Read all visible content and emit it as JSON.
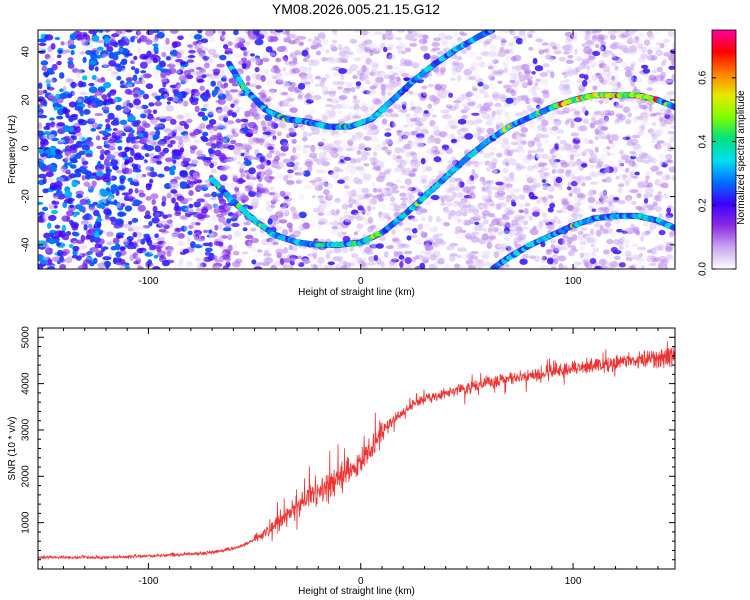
{
  "title": "YM08.2026.005.21.15.G12",
  "chart_data": [
    {
      "type": "heatmap",
      "xlabel": "Height of straight line (km)",
      "ylabel": "Frequency (Hz)",
      "xlim": [
        -152,
        148
      ],
      "ylim": [
        -50,
        49
      ],
      "xticks": [
        -100,
        0,
        100
      ],
      "xtick_labels": [
        "-100",
        "0",
        "100"
      ],
      "yticks": [
        -40,
        -20,
        0,
        20,
        40
      ],
      "ytick_labels": [
        "-40",
        "-20",
        "0",
        "20",
        "40"
      ],
      "grid": false,
      "colorbar": {
        "label": "Normalized spectral amplitude",
        "range": [
          0,
          0.75
        ],
        "ticks": [
          0,
          0.2,
          0.4,
          0.6
        ],
        "tick_labels": [
          "0.0",
          "0.2",
          "0.4",
          "0.6"
        ],
        "colors": [
          "#ffffff",
          "#c8a6f0",
          "#8a2be2",
          "#3c00ff",
          "#0070ff",
          "#00e0f0",
          "#00e080",
          "#80ff00",
          "#e8e800",
          "#ff8000",
          "#ff0000",
          "#ff00a0"
        ]
      },
      "series": [
        {
          "x": [
            -62,
            -55,
            -45,
            -35,
            -25,
            -15,
            -5,
            5,
            15,
            25,
            35,
            45,
            55,
            62
          ],
          "y": [
            35,
            25,
            16,
            12,
            11,
            9,
            9,
            12,
            20,
            28,
            35,
            41,
            46,
            49
          ]
        },
        {
          "x": [
            -70,
            -60,
            -50,
            -40,
            -30,
            -20,
            -10,
            0,
            10,
            20,
            30,
            40,
            50,
            60,
            70,
            80,
            90,
            100,
            110,
            120,
            130,
            140,
            148
          ],
          "y": [
            -13,
            -22,
            -30,
            -36,
            -39,
            -40,
            -40,
            -39,
            -35,
            -28,
            -20,
            -12,
            -4,
            3,
            9,
            13,
            17,
            20,
            22,
            22,
            22,
            20,
            17
          ]
        },
        {
          "x": [
            62,
            70,
            80,
            90,
            100,
            110,
            120,
            130,
            140,
            148
          ],
          "y": [
            -50,
            -45,
            -40,
            -36,
            -32,
            -29,
            -28,
            -28,
            -30,
            -33
          ]
        }
      ]
    },
    {
      "type": "line",
      "xlabel": "Height of straight line (km)",
      "ylabel": "SNR (10 * v/v)",
      "xlim": [
        -152,
        148
      ],
      "ylim": [
        0,
        5200
      ],
      "xticks": [
        -100,
        0,
        100
      ],
      "xtick_labels": [
        "-100",
        "0",
        "100"
      ],
      "yticks": [
        1000,
        2000,
        3000,
        4000,
        5000
      ],
      "ytick_labels": [
        "1000",
        "2000",
        "3000",
        "4000",
        "5000"
      ],
      "grid": false,
      "color": "#ee3333",
      "series": [
        {
          "x": [
            -152,
            -140,
            -120,
            -100,
            -80,
            -70,
            -60,
            -55,
            -50,
            -45,
            -40,
            -35,
            -30,
            -25,
            -20,
            -15,
            -10,
            -5,
            0,
            5,
            10,
            15,
            20,
            25,
            30,
            40,
            50,
            60,
            70,
            80,
            90,
            100,
            110,
            120,
            130,
            140,
            148
          ],
          "y": [
            250,
            250,
            250,
            280,
            320,
            360,
            440,
            520,
            640,
            800,
            950,
            1150,
            1350,
            1550,
            1700,
            1850,
            2000,
            2150,
            2300,
            2600,
            2950,
            3200,
            3400,
            3550,
            3650,
            3800,
            3920,
            4020,
            4100,
            4180,
            4250,
            4320,
            4400,
            4460,
            4510,
            4560,
            4600
          ]
        }
      ]
    }
  ]
}
